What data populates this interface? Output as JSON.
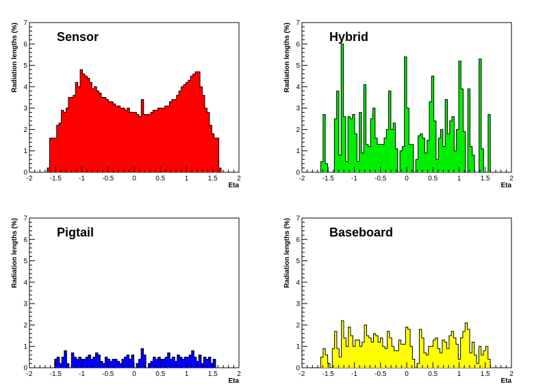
{
  "chart_data": [
    {
      "type": "bar",
      "title": "Sensor",
      "xlabel": "Eta",
      "ylabel": "Radiation lengths (%)",
      "xlim": [
        -2,
        2
      ],
      "ylim": [
        0,
        7
      ],
      "x_ticks": [
        -2,
        -1.5,
        -1,
        -0.5,
        0,
        0.5,
        1,
        1.5,
        2
      ],
      "x_tick_labels": [
        "-2",
        "-1.5",
        "-1",
        "-0.5",
        "0",
        "0.5",
        "1",
        "1.5",
        "2"
      ],
      "y_ticks": [
        0,
        1,
        2,
        3,
        4,
        5,
        6,
        7
      ],
      "y_tick_labels": [
        "0",
        "1",
        "2",
        "3",
        "4",
        "5",
        "6",
        "7"
      ],
      "bin_edges": [
        -1.66,
        1.66
      ],
      "fill_color": "#ff0000",
      "values": [
        0.2,
        1.6,
        1.6,
        1.6,
        2.2,
        2.3,
        2.9,
        2.8,
        3.0,
        3.5,
        3.5,
        3.6,
        4.2,
        4.0,
        4.8,
        4.6,
        4.5,
        4.4,
        4.2,
        3.9,
        4.0,
        3.8,
        3.7,
        3.5,
        3.5,
        3.4,
        3.3,
        3.3,
        3.2,
        3.1,
        3.1,
        3.0,
        3.0,
        2.9,
        3.0,
        2.8,
        2.8,
        2.8,
        2.7,
        2.6,
        3.4,
        2.7,
        2.7,
        2.7,
        2.8,
        2.9,
        2.9,
        3.0,
        3.0,
        3.0,
        3.1,
        3.1,
        3.3,
        3.4,
        3.4,
        3.6,
        3.8,
        4.0,
        4.1,
        4.2,
        4.3,
        4.5,
        4.6,
        4.7,
        4.7,
        4.0,
        3.6,
        3.0,
        2.8,
        2.2,
        1.8,
        1.6,
        1.6,
        0.2
      ]
    },
    {
      "type": "bar",
      "title": "Hybrid",
      "xlabel": "Eta",
      "ylabel": "Radiation lengths (%)",
      "xlim": [
        -2,
        2
      ],
      "ylim": [
        0,
        7
      ],
      "x_ticks": [
        -2,
        -1.5,
        -1,
        -0.5,
        0,
        0.5,
        1,
        1.5,
        2
      ],
      "x_tick_labels": [
        "-2",
        "-1.5",
        "-1",
        "-0.5",
        "0",
        "0.5",
        "1",
        "1.5",
        "2"
      ],
      "y_ticks": [
        0,
        1,
        2,
        3,
        4,
        5,
        6,
        7
      ],
      "y_tick_labels": [
        "0",
        "1",
        "2",
        "3",
        "4",
        "5",
        "6",
        "7"
      ],
      "bin_edges": [
        -1.64,
        1.64
      ],
      "fill_color": "#00ee00",
      "values": [
        0.5,
        2.7,
        0.4,
        0.0,
        0.0,
        0.0,
        2.5,
        3.8,
        0.8,
        6.0,
        2.6,
        0.5,
        2.6,
        2.5,
        2.7,
        1.8,
        0.5,
        2.8,
        0.9,
        4.1,
        1.3,
        1.2,
        2.5,
        3.0,
        1.6,
        1.3,
        1.3,
        1.3,
        1.6,
        2.0,
        3.8,
        2.0,
        2.3,
        1.1,
        0.0,
        1.0,
        1.2,
        5.4,
        3.0,
        1.3,
        1.3,
        0.0,
        0.6,
        1.7,
        1.8,
        1.6,
        0.9,
        1.5,
        3.3,
        4.5,
        2.4,
        0.6,
        1.6,
        2.0,
        1.2,
        3.4,
        1.8,
        2.4,
        2.6,
        1.0,
        2.0,
        5.2,
        3.9,
        1.9,
        0.0,
        3.9,
        1.2,
        0.8,
        0.0,
        0.0,
        5.3,
        1.1,
        0.0,
        0.0,
        2.7,
        0.0
      ]
    },
    {
      "type": "bar",
      "title": "Pigtail",
      "xlabel": "Eta",
      "ylabel": "Radiation lengths (%)",
      "xlim": [
        -2,
        2
      ],
      "ylim": [
        0,
        7
      ],
      "x_ticks": [
        -2,
        -1.5,
        -1,
        -0.5,
        0,
        0.5,
        1,
        1.5,
        2
      ],
      "x_tick_labels": [
        "-2",
        "-1.5",
        "-1",
        "-0.5",
        "0",
        "0.5",
        "1",
        "1.5",
        "2"
      ],
      "y_ticks": [
        0,
        1,
        2,
        3,
        4,
        5,
        6,
        7
      ],
      "y_tick_labels": [
        "0",
        "1",
        "2",
        "3",
        "4",
        "5",
        "6",
        "7"
      ],
      "bin_edges": [
        -1.52,
        1.6
      ],
      "fill_color": "#0000ff",
      "values": [
        0.4,
        0.5,
        0.2,
        0.5,
        0.8,
        0.2,
        0.0,
        0.7,
        0.5,
        0.4,
        0.5,
        0.4,
        0.4,
        0.5,
        0.6,
        0.4,
        0.5,
        0.7,
        0.6,
        0.3,
        0.2,
        0.5,
        0.4,
        0.3,
        0.4,
        0.4,
        0.3,
        0.2,
        0.4,
        0.5,
        0.6,
        0.4,
        0.6,
        0.0,
        0.2,
        0.4,
        0.9,
        0.6,
        0.0,
        0.2,
        0.3,
        0.5,
        0.4,
        0.5,
        0.4,
        0.4,
        0.5,
        0.7,
        0.4,
        0.5,
        0.3,
        0.6,
        0.5,
        0.4,
        0.5,
        0.5,
        0.6,
        0.8,
        0.5,
        0.3,
        0.6,
        0.2,
        0.5,
        0.4,
        0.5,
        0.2,
        0.4,
        0.0
      ]
    },
    {
      "type": "bar",
      "title": "Baseboard",
      "xlabel": "Eta",
      "ylabel": "Radiation lengths (%)",
      "xlim": [
        -2,
        2
      ],
      "ylim": [
        0,
        7
      ],
      "x_ticks": [
        -2,
        -1.5,
        -1,
        -0.5,
        0,
        0.5,
        1,
        1.5,
        2
      ],
      "x_tick_labels": [
        "-2",
        "-1.5",
        "-1",
        "-0.5",
        "0",
        "0.5",
        "1",
        "1.5",
        "2"
      ],
      "y_ticks": [
        0,
        1,
        2,
        3,
        4,
        5,
        6,
        7
      ],
      "y_tick_labels": [
        "0",
        "1",
        "2",
        "3",
        "4",
        "5",
        "6",
        "7"
      ],
      "bin_edges": [
        -1.64,
        1.64
      ],
      "fill_color": "#ffff00",
      "values": [
        0.5,
        0.9,
        0.6,
        0.2,
        0.0,
        0.9,
        1.7,
        0.9,
        0.5,
        2.2,
        1.4,
        1.0,
        1.9,
        1.5,
        1.0,
        1.3,
        1.3,
        1.0,
        1.2,
        2.0,
        1.5,
        1.4,
        1.2,
        1.6,
        1.5,
        1.2,
        1.4,
        1.0,
        0.9,
        1.7,
        1.4,
        1.0,
        0.8,
        0.8,
        1.3,
        1.1,
        1.1,
        1.9,
        1.8,
        1.0,
        0.4,
        0.0,
        0.2,
        1.8,
        1.4,
        0.7,
        0.6,
        1.0,
        1.0,
        1.3,
        1.4,
        0.9,
        0.7,
        1.3,
        1.2,
        0.9,
        1.5,
        1.7,
        1.4,
        1.1,
        0.4,
        1.4,
        1.7,
        2.1,
        1.8,
        0.7,
        1.2,
        0.6,
        0.2,
        1.0,
        0.6,
        0.8,
        1.0,
        0.4,
        0.0
      ]
    }
  ]
}
